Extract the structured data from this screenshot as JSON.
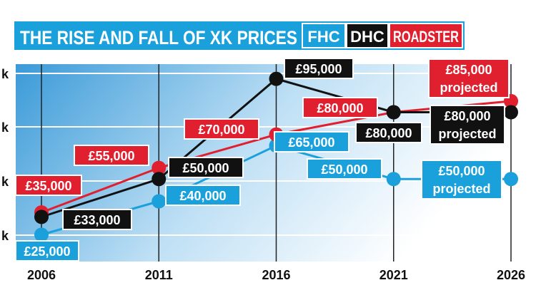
{
  "chart_data": {
    "type": "line",
    "title": "THE RISE AND FALL OF XK PRICES",
    "x": [
      2006,
      2011,
      2016,
      2021,
      2026
    ],
    "xlim": [
      2006,
      2026
    ],
    "ylim": [
      20000,
      100000
    ],
    "y_ticks": [
      25000,
      50000,
      75000,
      100000
    ],
    "y_tick_labels": [
      "k",
      "k",
      "k",
      "k"
    ],
    "grid": true,
    "legend_position": "top",
    "series": [
      {
        "name": "FHC",
        "color": "#1aa1dc",
        "values": [
          25000,
          40000,
          65000,
          50000,
          50000
        ],
        "labels": [
          "£25,000",
          "£40,000",
          "£65,000",
          "£50,000",
          "£50,000"
        ],
        "projected_label": "projected"
      },
      {
        "name": "DHC",
        "color": "#111111",
        "values": [
          33000,
          50000,
          95000,
          80000,
          80000
        ],
        "labels": [
          "£33,000",
          "£50,000",
          "£95,000",
          "£80,000",
          "£80,000"
        ],
        "projected_label": "projected"
      },
      {
        "name": "ROADSTER",
        "color": "#e0202e",
        "values": [
          35000,
          55000,
          70000,
          80000,
          85000
        ],
        "labels": [
          "£35,000",
          "£55,000",
          "£70,000",
          "£80,000",
          "£85,000"
        ],
        "projected_label": "projected"
      }
    ]
  }
}
